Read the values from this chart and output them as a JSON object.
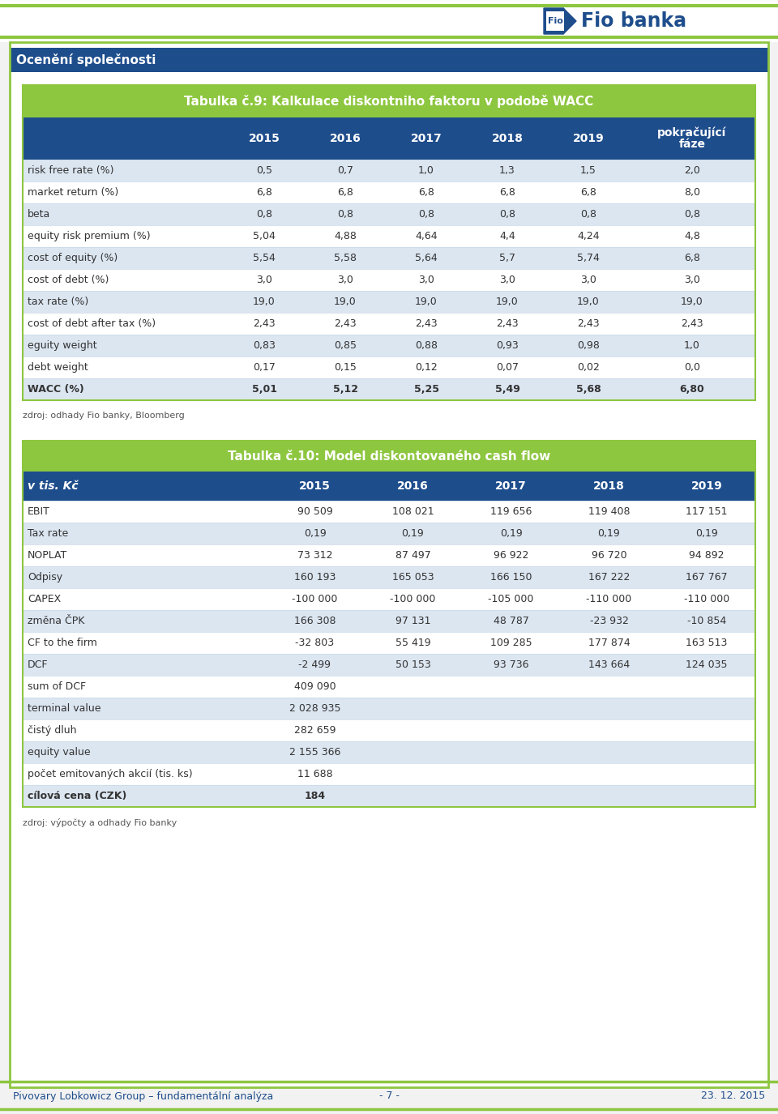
{
  "page_bg": "#f2f2f2",
  "content_bg": "#ffffff",
  "dark_blue": "#1e4d8c",
  "green_header_color": "#8dc63f",
  "light_blue_row": "#dce6f1",
  "white_row": "#ffffff",
  "border_green": "#8dc63f",
  "text_dark": "#333333",
  "text_blue_footer": "#1e4d8c",
  "section_title": "Ocenění společnosti",
  "table1_title": "Tabulka č.9: Kalkulace diskontniho faktoru v podobě WACC",
  "table1_col_headers": [
    "",
    "2015",
    "2016",
    "2017",
    "2018",
    "2019",
    "pokračující\nfáze"
  ],
  "table1_rows": [
    [
      "risk free rate (%)",
      "0,5",
      "0,7",
      "1,0",
      "1,3",
      "1,5",
      "2,0"
    ],
    [
      "market return (%)",
      "6,8",
      "6,8",
      "6,8",
      "6,8",
      "6,8",
      "8,0"
    ],
    [
      "beta",
      "0,8",
      "0,8",
      "0,8",
      "0,8",
      "0,8",
      "0,8"
    ],
    [
      "equity risk premium (%)",
      "5,04",
      "4,88",
      "4,64",
      "4,4",
      "4,24",
      "4,8"
    ],
    [
      "cost of equity (%)",
      "5,54",
      "5,58",
      "5,64",
      "5,7",
      "5,74",
      "6,8"
    ],
    [
      "cost of debt (%)",
      "3,0",
      "3,0",
      "3,0",
      "3,0",
      "3,0",
      "3,0"
    ],
    [
      "tax rate (%)",
      "19,0",
      "19,0",
      "19,0",
      "19,0",
      "19,0",
      "19,0"
    ],
    [
      "cost of debt after tax (%)",
      "2,43",
      "2,43",
      "2,43",
      "2,43",
      "2,43",
      "2,43"
    ],
    [
      "eguity weight",
      "0,83",
      "0,85",
      "0,88",
      "0,93",
      "0,98",
      "1,0"
    ],
    [
      "debt weight",
      "0,17",
      "0,15",
      "0,12",
      "0,07",
      "0,02",
      "0,0"
    ],
    [
      "WACC (%)",
      "5,01",
      "5,12",
      "5,25",
      "5,49",
      "5,68",
      "6,80"
    ]
  ],
  "table1_bold_rows": [
    "WACC (%)"
  ],
  "table1_source": "zdroj: odhady Fio banky, Bloomberg",
  "table2_title": "Tabulka č.10: Model diskontovaného cash flow",
  "table2_col_headers": [
    "v tis. Kč",
    "2015",
    "2016",
    "2017",
    "2018",
    "2019"
  ],
  "table2_rows": [
    [
      "EBIT",
      "90 509",
      "108 021",
      "119 656",
      "119 408",
      "117 151"
    ],
    [
      "Tax rate",
      "0,19",
      "0,19",
      "0,19",
      "0,19",
      "0,19"
    ],
    [
      "NOPLAT",
      "73 312",
      "87 497",
      "96 922",
      "96 720",
      "94 892"
    ],
    [
      "Odpisy",
      "160 193",
      "165 053",
      "166 150",
      "167 222",
      "167 767"
    ],
    [
      "CAPEX",
      "-100 000",
      "-100 000",
      "-105 000",
      "-110 000",
      "-110 000"
    ],
    [
      "změna ČPK",
      "166 308",
      "97 131",
      "48 787",
      "-23 932",
      "-10 854"
    ],
    [
      "CF to the firm",
      "-32 803",
      "55 419",
      "109 285",
      "177 874",
      "163 513"
    ],
    [
      "DCF",
      "-2 499",
      "50 153",
      "93 736",
      "143 664",
      "124 035"
    ],
    [
      "sum of DCF",
      "409 090",
      "",
      "",
      "",
      ""
    ],
    [
      "terminal value",
      "2 028 935",
      "",
      "",
      "",
      ""
    ],
    [
      "čistý dluh",
      "282 659",
      "",
      "",
      "",
      ""
    ],
    [
      "equity value",
      "2 155 366",
      "",
      "",
      "",
      ""
    ],
    [
      "počet emitovaných akcií (tis. ks)",
      "11 688",
      "",
      "",
      "",
      ""
    ],
    [
      "cílová cena (CZK)",
      "184",
      "",
      "",
      "",
      ""
    ]
  ],
  "table2_bold_rows": [
    "cílová cena (CZK)"
  ],
  "table2_source": "zdroj: výpočty a odhady Fio banky",
  "footer_left": "Pivovary Lobkowicz Group – fundamentální analýza",
  "footer_center": "- 7 -",
  "footer_right": "23. 12. 2015"
}
